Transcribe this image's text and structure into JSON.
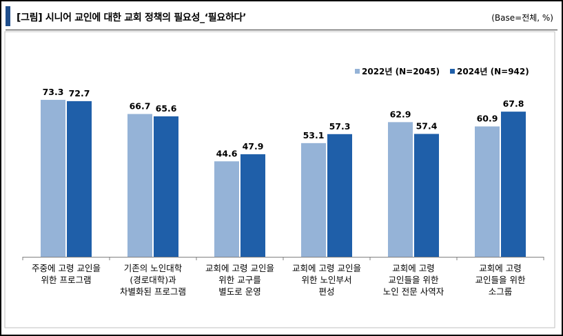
{
  "header": {
    "title": "[그림] 시니어 교인에 대한 교회 정책의 필요성_‘필요하다’",
    "base_note": "(Base=전체, %)"
  },
  "colors": {
    "accent": "#1f4e8c",
    "series_2022": "#95b3d7",
    "series_2024": "#1f5fa9"
  },
  "chart_data": {
    "type": "bar",
    "categories": [
      [
        "주중에 고령 교인을",
        "위한 프로그램"
      ],
      [
        "기존의 노인대학",
        "(경로대학)과",
        "차별화된 프로그램"
      ],
      [
        "교회에 고령 교인을",
        "위한 교구를",
        "별도로 운영"
      ],
      [
        "교회에 고령 교인을",
        "위한 노인부서",
        "편성"
      ],
      [
        "교회에 고령",
        "교인들을 위한",
        "노인 전문 사역자"
      ],
      [
        "교회에 고령",
        "교인들을 위한",
        "소그룹"
      ]
    ],
    "series": [
      {
        "name": "2022년 (N=2045)",
        "values": [
          73.3,
          66.7,
          44.6,
          53.1,
          62.9,
          60.9
        ]
      },
      {
        "name": "2024년 (N=942)",
        "values": [
          72.7,
          65.6,
          47.9,
          57.3,
          57.4,
          67.8
        ]
      }
    ],
    "legend_position": "top-right",
    "grid": false
  }
}
